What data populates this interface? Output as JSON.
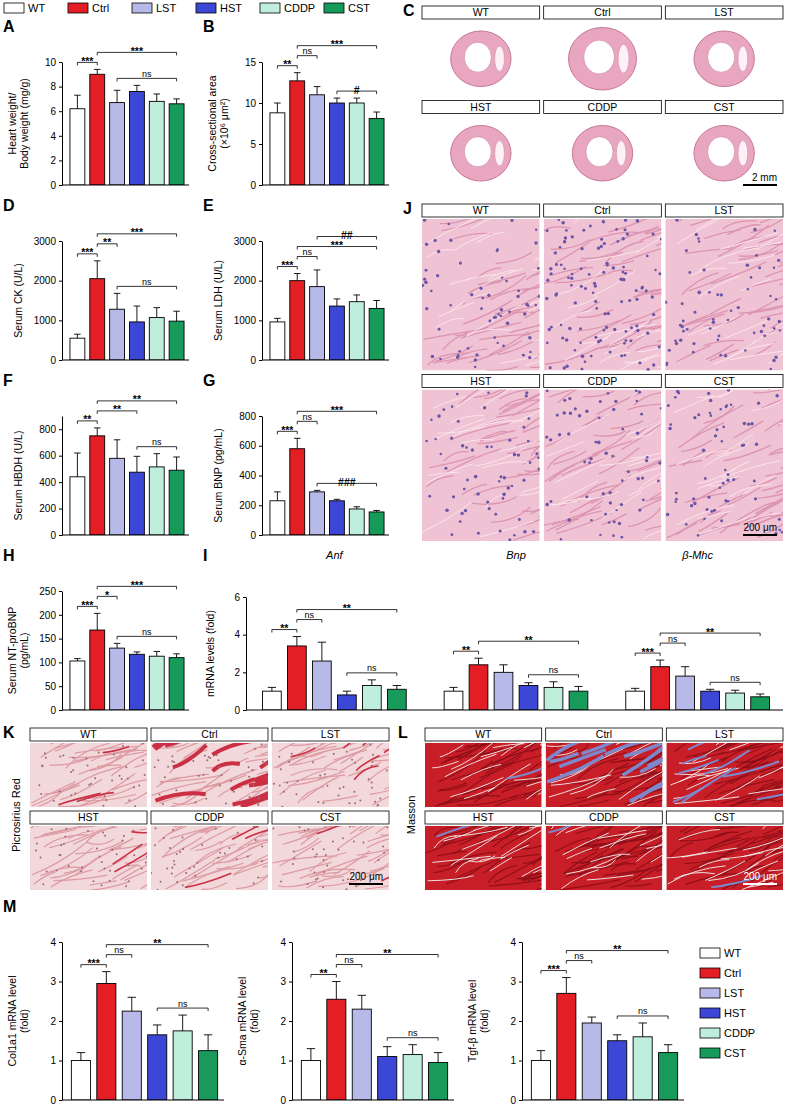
{
  "chart_data": [
    {
      "type": "bar",
      "title": "A",
      "ylabel": "Heart weight/\nBody weight (mg/g)",
      "categories": [
        "WT",
        "Ctrl",
        "LST",
        "HST",
        "CDDP",
        "CST"
      ],
      "colors": [
        "#ffffff",
        "#e31e24",
        "#b7b9e8",
        "#3d47d6",
        "#bfeedd",
        "#189a5a"
      ],
      "values": [
        6.2,
        9.0,
        6.7,
        7.6,
        6.8,
        6.6
      ],
      "errors": [
        1.1,
        0.4,
        1.0,
        0.5,
        0.6,
        0.4
      ],
      "ylim": [
        0,
        10
      ],
      "yticks": [
        0,
        2,
        4,
        6,
        8,
        10
      ],
      "tick_labels": "y",
      "legend": "top",
      "annotations": [
        {
          "label": "***",
          "from": 0,
          "to": 1
        },
        {
          "label": "***",
          "from": 1,
          "to": 5
        },
        {
          "label": "ns",
          "from": 2,
          "to": 5
        }
      ]
    },
    {
      "type": "bar",
      "title": "B",
      "ylabel": "Cross-sectional area\n(×10⁶ μm²)",
      "colors": [
        "#ffffff",
        "#e31e24",
        "#b7b9e8",
        "#3d47d6",
        "#bfeedd",
        "#189a5a"
      ],
      "values": [
        8.8,
        12.7,
        11.0,
        10.0,
        10.0,
        8.1
      ],
      "errors": [
        1.2,
        1.0,
        1.0,
        0.6,
        0.6,
        0.8
      ],
      "ylim": [
        0,
        15
      ],
      "yticks": [
        0,
        5,
        10,
        15
      ],
      "tick_labels": "y",
      "annotations": [
        {
          "label": "**",
          "from": 0,
          "to": 1
        },
        {
          "label": "ns",
          "from": 1,
          "to": 2
        },
        {
          "label": "***",
          "from": 1,
          "to": 5
        },
        {
          "label": "#",
          "from": 3,
          "to": 5
        }
      ]
    },
    {
      "type": "image_grid",
      "title": "C",
      "labels": [
        "WT",
        "Ctrl",
        "LST",
        "HST",
        "CDDP",
        "CST"
      ],
      "scale_bar": "2 mm"
    },
    {
      "type": "bar",
      "title": "D",
      "ylabel": "Serum CK (U/L)",
      "colors": [
        "#ffffff",
        "#e31e24",
        "#b7b9e8",
        "#3d47d6",
        "#bfeedd",
        "#189a5a"
      ],
      "values": [
        550,
        2050,
        1280,
        960,
        1070,
        980
      ],
      "errors": [
        100,
        450,
        400,
        400,
        250,
        250
      ],
      "ylim": [
        0,
        3000
      ],
      "yticks": [
        0,
        1000,
        2000,
        3000
      ],
      "tick_labels": "y",
      "annotations": [
        {
          "label": "***",
          "from": 0,
          "to": 1
        },
        {
          "label": "**",
          "from": 1,
          "to": 2
        },
        {
          "label": "***",
          "from": 1,
          "to": 5
        },
        {
          "label": "ns",
          "from": 2,
          "to": 5
        }
      ]
    },
    {
      "type": "bar",
      "title": "E",
      "ylabel": "Serum LDH (U/L)",
      "colors": [
        "#ffffff",
        "#e31e24",
        "#b7b9e8",
        "#3d47d6",
        "#bfeedd",
        "#189a5a"
      ],
      "values": [
        960,
        2000,
        1850,
        1360,
        1470,
        1300
      ],
      "errors": [
        90,
        180,
        420,
        180,
        170,
        200
      ],
      "ylim": [
        0,
        3000
      ],
      "yticks": [
        0,
        1000,
        2000,
        3000
      ],
      "tick_labels": "y",
      "annotations": [
        {
          "label": "***",
          "from": 0,
          "to": 1
        },
        {
          "label": "ns",
          "from": 1,
          "to": 2
        },
        {
          "label": "***",
          "from": 1,
          "to": 5
        },
        {
          "label": "##",
          "from": 2,
          "to": 5
        }
      ]
    },
    {
      "type": "bar",
      "title": "F",
      "ylabel": "Serum HBDH (U/L)",
      "colors": [
        "#ffffff",
        "#e31e24",
        "#b7b9e8",
        "#3d47d6",
        "#bfeedd",
        "#189a5a"
      ],
      "values": [
        440,
        750,
        580,
        475,
        515,
        490
      ],
      "errors": [
        180,
        60,
        140,
        120,
        100,
        100
      ],
      "ylim": [
        0,
        900
      ],
      "yticks": [
        0,
        200,
        400,
        600,
        800
      ],
      "tick_labels": "y",
      "annotations": [
        {
          "label": "**",
          "from": 0,
          "to": 1
        },
        {
          "label": "**",
          "from": 1,
          "to": 3
        },
        {
          "label": "**",
          "from": 1,
          "to": 5
        },
        {
          "label": "ns",
          "from": 3,
          "to": 5
        }
      ]
    },
    {
      "type": "bar",
      "title": "G",
      "ylabel": "Serum BNP (pg/mL)",
      "colors": [
        "#ffffff",
        "#e31e24",
        "#b7b9e8",
        "#3d47d6",
        "#bfeedd",
        "#189a5a"
      ],
      "values": [
        230,
        580,
        290,
        230,
        175,
        155
      ],
      "errors": [
        60,
        70,
        10,
        10,
        15,
        10
      ],
      "ylim": [
        0,
        800
      ],
      "yticks": [
        0,
        200,
        400,
        600,
        800
      ],
      "tick_labels": "y",
      "annotations": [
        {
          "label": "***",
          "from": 0,
          "to": 1
        },
        {
          "label": "ns",
          "from": 1,
          "to": 2
        },
        {
          "label": "***",
          "from": 1,
          "to": 5
        },
        {
          "label": "###",
          "from": 2,
          "to": 5
        }
      ]
    },
    {
      "type": "bar",
      "title": "H",
      "ylabel": "Serum NT-proBNP\n(pg/mL)",
      "colors": [
        "#ffffff",
        "#e31e24",
        "#b7b9e8",
        "#3d47d6",
        "#bfeedd",
        "#189a5a"
      ],
      "values": [
        103,
        168,
        130,
        117,
        113,
        110
      ],
      "errors": [
        5,
        35,
        10,
        5,
        10,
        8
      ],
      "ylim": [
        0,
        250
      ],
      "yticks": [
        0,
        50,
        100,
        150,
        200,
        250
      ],
      "tick_labels": "y",
      "annotations": [
        {
          "label": "***",
          "from": 0,
          "to": 1
        },
        {
          "label": "*",
          "from": 1,
          "to": 2
        },
        {
          "label": "***",
          "from": 1,
          "to": 5
        },
        {
          "label": "ns",
          "from": 2,
          "to": 5
        }
      ]
    },
    {
      "type": "grouped_bar",
      "title": "I",
      "ylabel": "mRNA levels (fold)",
      "categories": [
        "Anf",
        "Bnp",
        "β-Mhc"
      ],
      "colors": [
        "#ffffff",
        "#e31e24",
        "#b7b9e8",
        "#3d47d6",
        "#bfeedd",
        "#189a5a"
      ],
      "values": [
        [
          1.0,
          3.4,
          2.6,
          0.8,
          1.3,
          1.1
        ],
        [
          1.0,
          2.4,
          2.0,
          1.3,
          1.2,
          1.0
        ],
        [
          1.0,
          2.3,
          1.8,
          1.0,
          0.9,
          0.7
        ]
      ],
      "errors": [
        [
          0.2,
          0.5,
          1.0,
          0.2,
          0.3,
          0.2
        ],
        [
          0.2,
          0.35,
          0.4,
          0.15,
          0.3,
          0.25
        ],
        [
          0.15,
          0.35,
          0.5,
          0.1,
          0.15,
          0.15
        ]
      ],
      "ylim": [
        0,
        6
      ],
      "yticks": [
        0,
        2,
        4,
        6
      ],
      "tick_labels": "y",
      "annotations": [
        {
          "label": "**",
          "from": 0,
          "to": 1
        },
        {
          "label": "ns",
          "from": 1,
          "to": 2
        },
        {
          "label": "**",
          "from": 1,
          "to": 5
        },
        {
          "label": "ns",
          "from": 3,
          "to": 5
        },
        {
          "label": "**",
          "from": 6,
          "to": 7
        },
        {
          "label": "**",
          "from": 7,
          "to": 11
        },
        {
          "label": "ns",
          "from": 9,
          "to": 11
        },
        {
          "label": "***",
          "from": 12,
          "to": 13
        },
        {
          "label": "ns",
          "from": 13,
          "to": 14
        },
        {
          "label": "**",
          "from": 13,
          "to": 17
        },
        {
          "label": "ns",
          "from": 15,
          "to": 17
        }
      ]
    },
    {
      "type": "image_grid",
      "title": "J",
      "labels": [
        "WT",
        "Ctrl",
        "LST",
        "HST",
        "CDDP",
        "CST"
      ],
      "scale_bar": "200 μm"
    },
    {
      "type": "image_grid",
      "title": "K",
      "ylabel": "Picrosirius Red",
      "labels": [
        "WT",
        "Ctrl",
        "LST",
        "HST",
        "CDDP",
        "CST"
      ],
      "scale_bar": "200 μm"
    },
    {
      "type": "image_grid",
      "title": "L",
      "ylabel": "Masson",
      "labels": [
        "WT",
        "Ctrl",
        "LST",
        "HST",
        "CDDP",
        "CST"
      ],
      "scale_bar": "200 μm"
    },
    {
      "type": "bar",
      "title": "M",
      "ylabel": "Col1a1 mRNA level\n(fold)",
      "colors": [
        "#ffffff",
        "#e31e24",
        "#b7b9e8",
        "#3d47d6",
        "#bfeedd",
        "#189a5a"
      ],
      "values": [
        1.0,
        2.95,
        2.25,
        1.65,
        1.75,
        1.25
      ],
      "errors": [
        0.2,
        0.3,
        0.35,
        0.25,
        0.4,
        0.4
      ],
      "ylim": [
        0,
        4
      ],
      "yticks": [
        0,
        1,
        2,
        3,
        4
      ],
      "tick_labels": "y",
      "annotations": [
        {
          "label": "***",
          "from": 0,
          "to": 1
        },
        {
          "label": "ns",
          "from": 1,
          "to": 2
        },
        {
          "label": "**",
          "from": 1,
          "to": 5
        },
        {
          "label": "ns",
          "from": 3,
          "to": 5
        }
      ]
    },
    {
      "type": "bar",
      "ylabel": "α-Sma mRNA level\n(fold)",
      "colors": [
        "#ffffff",
        "#e31e24",
        "#b7b9e8",
        "#3d47d6",
        "#bfeedd",
        "#189a5a"
      ],
      "values": [
        1.0,
        2.55,
        2.3,
        1.1,
        1.15,
        0.95
      ],
      "errors": [
        0.3,
        0.45,
        0.35,
        0.25,
        0.25,
        0.25
      ],
      "ylim": [
        0,
        4
      ],
      "yticks": [
        0,
        1,
        2,
        3,
        4
      ],
      "tick_labels": "y",
      "annotations": [
        {
          "label": "**",
          "from": 0,
          "to": 1
        },
        {
          "label": "ns",
          "from": 1,
          "to": 2
        },
        {
          "label": "**",
          "from": 1,
          "to": 5
        },
        {
          "label": "ns",
          "from": 3,
          "to": 5
        }
      ]
    },
    {
      "type": "bar",
      "ylabel": "Tgf-β mRNA level\n(fold)",
      "categories": [
        "WT",
        "Ctrl",
        "LST",
        "HST",
        "CDDP",
        "CST"
      ],
      "colors": [
        "#ffffff",
        "#e31e24",
        "#b7b9e8",
        "#3d47d6",
        "#bfeedd",
        "#189a5a"
      ],
      "values": [
        1.0,
        2.7,
        1.95,
        1.5,
        1.6,
        1.2
      ],
      "errors": [
        0.25,
        0.4,
        0.15,
        0.15,
        0.35,
        0.2
      ],
      "ylim": [
        0,
        4
      ],
      "yticks": [
        0,
        1,
        2,
        3,
        4
      ],
      "tick_labels": "y",
      "legend": "right",
      "annotations": [
        {
          "label": "***",
          "from": 0,
          "to": 1
        },
        {
          "label": "ns",
          "from": 1,
          "to": 2
        },
        {
          "label": "**",
          "from": 1,
          "to": 5
        },
        {
          "label": "ns",
          "from": 3,
          "to": 5
        }
      ]
    }
  ]
}
